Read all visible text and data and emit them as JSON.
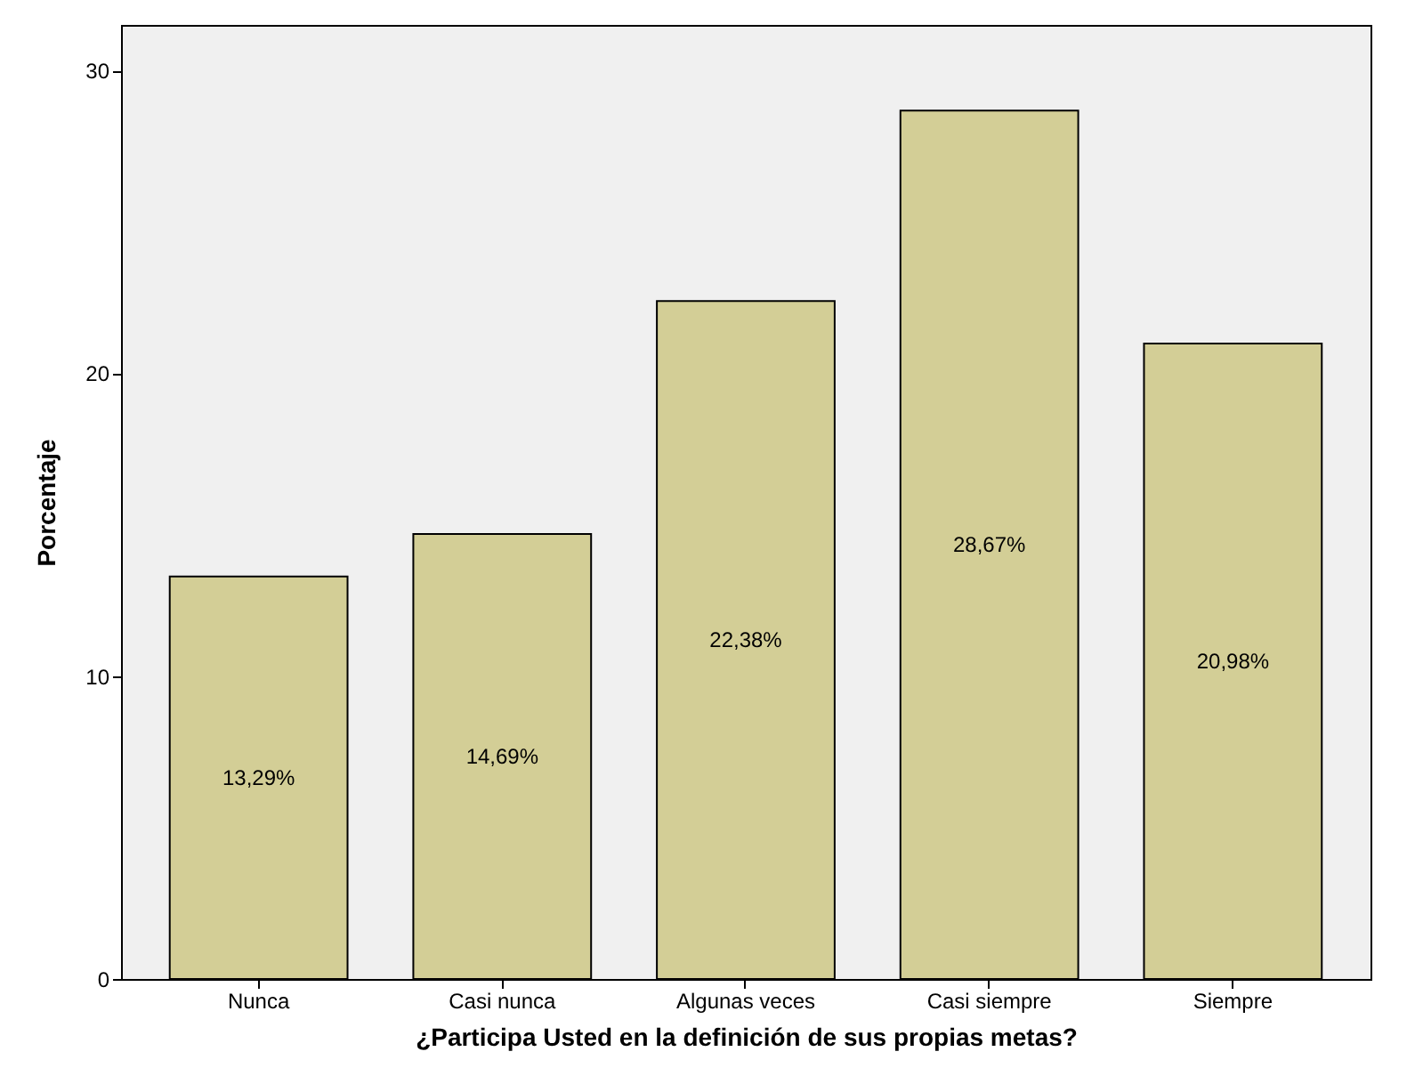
{
  "chart_data": {
    "type": "bar",
    "xlabel": "¿Participa Usted en la definición de sus propias metas?",
    "ylabel": "Porcentaje",
    "categories": [
      "Nunca",
      "Casi nunca",
      "Algunas veces",
      "Casi siempre",
      "Siempre"
    ],
    "values": [
      13.29,
      14.69,
      22.38,
      28.67,
      20.98
    ],
    "value_labels": [
      "13,29%",
      "14,69%",
      "22,38%",
      "28,67%",
      "20,98%"
    ],
    "color": "#d3ce96",
    "ylim": [
      0,
      31.5
    ],
    "yticks": [
      0,
      10,
      20,
      30
    ],
    "grid": false
  }
}
